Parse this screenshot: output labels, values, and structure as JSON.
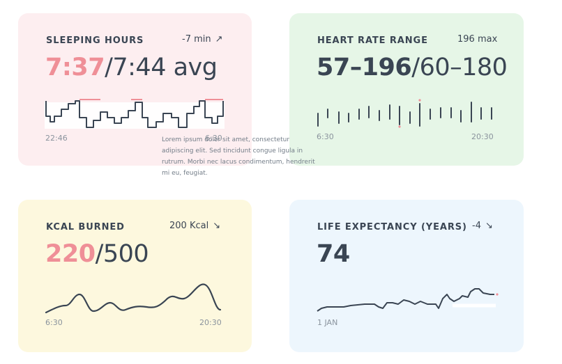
{
  "colors": {
    "accent_pink": "#ef8f97",
    "ink": "#3a4553",
    "muted": "#8a939d"
  },
  "sleep": {
    "title": "SLEEPING HOURS",
    "delta": "-7 min",
    "delta_icon": "arrow-up-right-icon",
    "value": "7:37",
    "separator": "/",
    "avg": "7:44 avg",
    "axis_start": "22:46",
    "axis_end": "6:30"
  },
  "heart": {
    "title": "HEART RATE RANGE",
    "max": "196 max",
    "value": "57–196",
    "separator": "/",
    "range": "60–180",
    "axis_start": "6:30",
    "axis_end": "20:30"
  },
  "kcal": {
    "title": "KCAL BURNED",
    "delta": "200 Kcal",
    "delta_icon": "arrow-down-right-icon",
    "value": "220",
    "separator": "/",
    "goal": "500",
    "axis_start": "6:30",
    "axis_end": "20:30"
  },
  "life": {
    "title": "LIFE EXPECTANCY (YEARS)",
    "delta": "-4",
    "delta_icon": "arrow-down-right-icon",
    "value": "74",
    "axis_start": "1 JAN"
  },
  "tooltip": {
    "text": "Lorem ipsum dolor sit amet, consectetur adipiscing elit. Sed tincidunt congue ligula in rutrum. Morbi nec lacus condimentum, hendrerit mi eu, feugiat."
  }
}
